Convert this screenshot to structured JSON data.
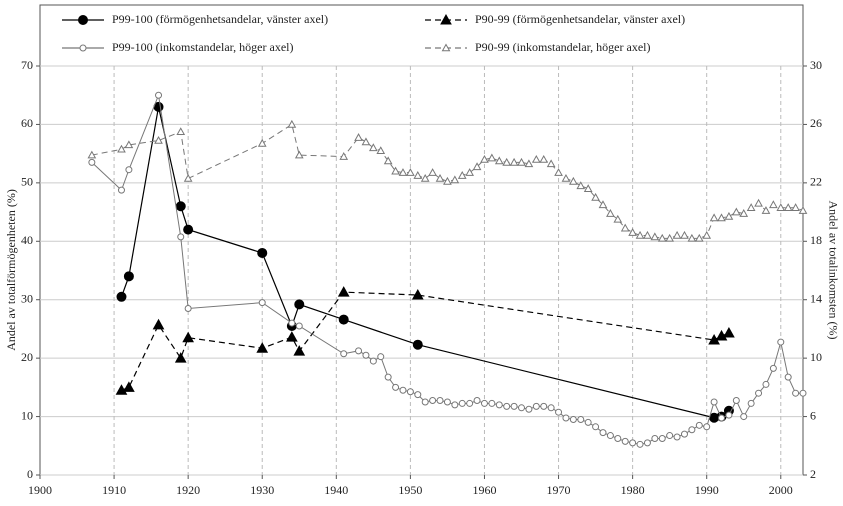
{
  "chart_data": {
    "type": "line",
    "y_label": "Andel av totalförmögenheten (%)",
    "y2_label": "Andel av totalinkomsten (%)",
    "xlim": [
      1900,
      2003
    ],
    "xticks": [
      1900,
      1910,
      1920,
      1930,
      1940,
      1950,
      1960,
      1970,
      1980,
      1990,
      2000
    ],
    "ylim": [
      0,
      70
    ],
    "yticks": [
      0,
      10,
      20,
      30,
      40,
      50,
      60,
      70
    ],
    "y2lim": [
      2,
      30
    ],
    "y2ticks": [
      2,
      6,
      10,
      14,
      18,
      22,
      26,
      30
    ],
    "grid": true,
    "legend": "top",
    "series": [
      {
        "name": "P99-100 (förmögenhetsandelar, vänster axel)",
        "color": "#000000",
        "marker": "circle",
        "filled": true,
        "dashed": false,
        "x": [
          1911,
          1912,
          1916,
          1919,
          1920,
          1930,
          1934,
          1935,
          1941,
          1951,
          1991,
          1992,
          1993
        ],
        "values": [
          30.5,
          34,
          63,
          46,
          42,
          38,
          25.5,
          29.2,
          26.6,
          22.3,
          9.8,
          10,
          11
        ]
      },
      {
        "name": "P90-99 (förmögenhetsandelar, vänster axel)",
        "color": "#000000",
        "marker": "triangle",
        "filled": true,
        "dashed": true,
        "x": [
          1911,
          1912,
          1916,
          1919,
          1920,
          1930,
          1934,
          1935,
          1941,
          1951,
          1991,
          1992,
          1993
        ],
        "values": [
          14.5,
          15,
          25.7,
          20,
          23.5,
          21.7,
          23.6,
          21.2,
          31.3,
          30.8,
          23.1,
          23.8,
          24.3
        ]
      },
      {
        "name": "P99-100 (inkomstandelar, höger axel)",
        "color": "#777777",
        "marker": "circle",
        "filled": false,
        "dashed": false,
        "axis": "y2",
        "x": [
          1907,
          1911,
          1912,
          1916,
          1919,
          1920,
          1930,
          1934,
          1935,
          1941,
          1943,
          1944,
          1945,
          1946,
          1947,
          1948,
          1949,
          1950,
          1951,
          1952,
          1953,
          1954,
          1955,
          1956,
          1957,
          1958,
          1959,
          1960,
          1961,
          1962,
          1963,
          1964,
          1965,
          1966,
          1967,
          1968,
          1969,
          1970,
          1971,
          1972,
          1973,
          1974,
          1975,
          1976,
          1977,
          1978,
          1979,
          1980,
          1981,
          1982,
          1983,
          1984,
          1985,
          1986,
          1987,
          1988,
          1989,
          1990,
          1991,
          1992,
          1993,
          1994,
          1995,
          1996,
          1997,
          1998,
          1999,
          2000,
          2001,
          2002,
          2003
        ],
        "values": [
          23.4,
          21.5,
          22.9,
          28.0,
          18.3,
          13.4,
          13.8,
          12.4,
          12.2,
          10.3,
          10.5,
          10.2,
          9.8,
          10.1,
          8.7,
          8.0,
          7.8,
          7.7,
          7.5,
          7.0,
          7.1,
          7.1,
          7.0,
          6.8,
          6.9,
          6.9,
          7.1,
          6.9,
          6.9,
          6.8,
          6.7,
          6.7,
          6.6,
          6.5,
          6.7,
          6.7,
          6.6,
          6.3,
          5.9,
          5.8,
          5.8,
          5.6,
          5.3,
          4.9,
          4.7,
          4.5,
          4.3,
          4.2,
          4.1,
          4.2,
          4.5,
          4.5,
          4.7,
          4.6,
          4.8,
          5.1,
          5.4,
          5.3,
          7.0,
          5.9,
          6.1,
          7.1,
          6.0,
          6.9,
          7.6,
          8.2,
          9.3,
          11.1,
          8.7,
          7.6,
          7.6
        ]
      },
      {
        "name": "P90-99 (inkomstandelar, höger axel)",
        "color": "#777777",
        "marker": "triangle",
        "filled": false,
        "dashed": true,
        "axis": "y2",
        "x": [
          1907,
          1911,
          1912,
          1916,
          1919,
          1920,
          1930,
          1934,
          1935,
          1941,
          1943,
          1944,
          1945,
          1946,
          1947,
          1948,
          1949,
          1950,
          1951,
          1952,
          1953,
          1954,
          1955,
          1956,
          1957,
          1958,
          1959,
          1960,
          1961,
          1962,
          1963,
          1964,
          1965,
          1966,
          1967,
          1968,
          1969,
          1970,
          1971,
          1972,
          1973,
          1974,
          1975,
          1976,
          1977,
          1978,
          1979,
          1980,
          1981,
          1982,
          1983,
          1984,
          1985,
          1986,
          1987,
          1988,
          1989,
          1990,
          1991,
          1992,
          1993,
          1994,
          1995,
          1996,
          1997,
          1998,
          1999,
          2000,
          2001,
          2002,
          2003
        ],
        "values": [
          23.9,
          24.3,
          24.6,
          24.9,
          25.5,
          22.3,
          24.7,
          26.0,
          23.9,
          23.8,
          25.1,
          24.8,
          24.4,
          24.2,
          23.5,
          22.8,
          22.7,
          22.7,
          22.5,
          22.3,
          22.7,
          22.3,
          22.1,
          22.2,
          22.5,
          22.7,
          23.1,
          23.6,
          23.7,
          23.5,
          23.4,
          23.4,
          23.4,
          23.3,
          23.6,
          23.6,
          23.3,
          22.7,
          22.3,
          22.1,
          21.8,
          21.6,
          21.0,
          20.5,
          19.9,
          19.5,
          18.9,
          18.6,
          18.4,
          18.4,
          18.3,
          18.2,
          18.2,
          18.4,
          18.4,
          18.2,
          18.2,
          18.4,
          19.6,
          19.6,
          19.7,
          20.0,
          19.9,
          20.3,
          20.6,
          20.1,
          20.5,
          20.3,
          20.3,
          20.3,
          20.1
        ]
      }
    ]
  }
}
